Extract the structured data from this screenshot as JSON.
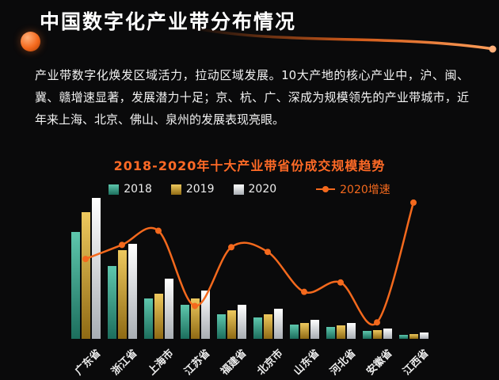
{
  "page": {
    "title": "中国数字化产业带分布情况",
    "paragraph": "产业带数字化焕发区域活力，拉动区域发展。10大产地的核心产业中，沪、闽、冀、赣增速显著，发展潜力十足；京、杭、广、深成为规模领先的产业带城市，近年来上海、北京、佛山、泉州的发展表现亮眼。",
    "accent_color": "#f4691d",
    "background_color": "#0a0a0b"
  },
  "chart_data": {
    "type": "bar",
    "title": "2018-2020年十大产业带省份成交规模趋势",
    "categories": [
      "广东省",
      "浙江省",
      "上海市",
      "江苏省",
      "福建省",
      "北京市",
      "山东省",
      "河北省",
      "安徽省",
      "江西省"
    ],
    "series": [
      {
        "name": "2018",
        "color": "#2f9e8a",
        "gradient": [
          "#5ec7ad",
          "#1c6e5d"
        ],
        "values": [
          106,
          72,
          40,
          34,
          24,
          21,
          14,
          12,
          8,
          4
        ]
      },
      {
        "name": "2019",
        "color": "#d6ab3a",
        "gradient": [
          "#eec95e",
          "#8f6a14"
        ],
        "values": [
          126,
          88,
          45,
          40,
          28,
          24,
          16,
          13.5,
          9,
          5
        ]
      },
      {
        "name": "2020",
        "color": "#e8e8e8",
        "gradient": [
          "#ffffff",
          "#a8adb3"
        ],
        "values": [
          140,
          94,
          60,
          48,
          34,
          30,
          19,
          16,
          10,
          6.5
        ]
      }
    ],
    "line_series": {
      "name": "2020增速",
      "color": "#f4691d",
      "values": [
        34,
        40,
        46,
        14,
        39,
        37,
        20,
        24,
        7,
        58
      ],
      "scale_max": 60
    },
    "ylim": [
      0,
      140
    ],
    "legend_position": "top",
    "grid": false
  }
}
